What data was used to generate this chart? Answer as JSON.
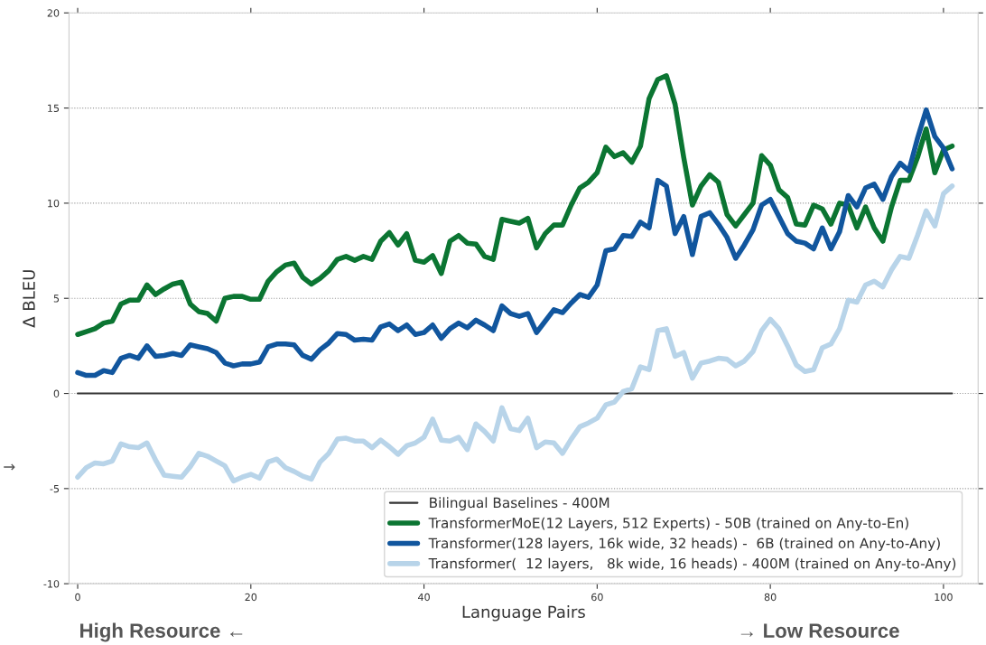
{
  "chart_data": {
    "type": "line",
    "xlabel": "Language Pairs",
    "ylabel": "Δ BLEU",
    "xlim": [
      -1,
      104
    ],
    "xticks": [
      0,
      20,
      40,
      60,
      80,
      100
    ],
    "ylim": [
      -10,
      20
    ],
    "yticks": [
      -10,
      -5,
      0,
      5,
      10,
      15,
      20
    ],
    "x": [
      0,
      1,
      2,
      3,
      4,
      5,
      6,
      7,
      8,
      9,
      10,
      11,
      12,
      13,
      14,
      15,
      16,
      17,
      18,
      19,
      20,
      21,
      22,
      23,
      24,
      25,
      26,
      27,
      28,
      29,
      30,
      31,
      32,
      33,
      34,
      35,
      36,
      37,
      38,
      39,
      40,
      41,
      42,
      43,
      44,
      45,
      46,
      47,
      48,
      49,
      50,
      51,
      52,
      53,
      54,
      55,
      56,
      57,
      58,
      59,
      60,
      61,
      62,
      63,
      64,
      65,
      66,
      67,
      68,
      69,
      70,
      71,
      72,
      73,
      74,
      75,
      76,
      77,
      78,
      79,
      80,
      81,
      82,
      83,
      84,
      85,
      86,
      87,
      88,
      89,
      90,
      91,
      92,
      93,
      94,
      95,
      96,
      97,
      98,
      99,
      100,
      101
    ],
    "grid": "y",
    "legend": "bottom right",
    "line_style": "solid",
    "annotations": [
      "High Resource ←",
      "→ Low Resource",
      "→"
    ],
    "series": [
      {
        "name": "Bilingual Baselines - 400M",
        "color": "#333333",
        "x": [
          0,
          101
        ],
        "values": [
          0,
          0
        ]
      },
      {
        "name": "TransformerMoE(12 Layers, 512 Experts) - 50B (trained on Any-to-En)",
        "color": "#0b7532",
        "values": [
          3.1,
          3.25,
          3.4,
          3.7,
          3.8,
          4.7,
          4.9,
          4.9,
          5.7,
          5.2,
          5.5,
          5.75,
          5.85,
          4.7,
          4.3,
          4.2,
          3.8,
          5.0,
          5.1,
          5.1,
          4.95,
          4.95,
          5.9,
          6.4,
          6.75,
          6.85,
          6.1,
          5.75,
          6.05,
          6.45,
          7.05,
          7.2,
          7.0,
          7.2,
          7.05,
          8.0,
          8.45,
          7.8,
          8.4,
          7.0,
          6.9,
          7.25,
          6.3,
          8.0,
          8.3,
          7.9,
          7.85,
          7.2,
          7.05,
          9.15,
          9.05,
          8.95,
          9.2,
          7.65,
          8.4,
          8.85,
          8.85,
          9.9,
          10.8,
          11.1,
          11.6,
          12.95,
          12.45,
          12.65,
          12.15,
          13.0,
          15.5,
          16.5,
          16.7,
          15.2,
          12.4,
          9.9,
          10.9,
          11.5,
          11.1,
          9.4,
          8.8,
          9.4,
          10.0,
          12.5,
          12.0,
          10.7,
          10.3,
          8.9,
          8.85,
          9.9,
          9.7,
          8.9,
          10.0,
          9.9,
          8.7,
          9.8,
          8.7,
          8.0,
          9.8,
          11.2,
          11.2,
          12.4,
          13.9,
          11.6,
          12.8,
          13.0
        ]
      },
      {
        "name": "Transformer(128 layers, 16k wide, 32 heads) -  6B (trained on Any-to-Any)",
        "color": "#11569e",
        "values": [
          1.1,
          0.95,
          0.95,
          1.2,
          1.1,
          1.85,
          2.0,
          1.85,
          2.5,
          1.95,
          2.0,
          2.1,
          2.0,
          2.55,
          2.45,
          2.35,
          2.15,
          1.6,
          1.45,
          1.55,
          1.55,
          1.65,
          2.45,
          2.6,
          2.6,
          2.55,
          2.0,
          1.8,
          2.3,
          2.65,
          3.15,
          3.1,
          2.8,
          2.85,
          2.8,
          3.5,
          3.65,
          3.3,
          3.6,
          3.1,
          3.2,
          3.6,
          2.9,
          3.4,
          3.7,
          3.45,
          3.85,
          3.6,
          3.3,
          4.6,
          4.2,
          4.05,
          4.2,
          3.2,
          3.8,
          4.4,
          4.25,
          4.75,
          5.2,
          5.05,
          5.7,
          7.5,
          7.6,
          8.3,
          8.25,
          9.0,
          8.7,
          11.2,
          10.9,
          8.4,
          9.3,
          7.3,
          9.3,
          9.5,
          8.9,
          8.2,
          7.1,
          7.8,
          8.6,
          9.9,
          10.2,
          9.3,
          8.4,
          8.0,
          7.9,
          7.6,
          8.7,
          7.6,
          8.5,
          10.4,
          9.8,
          10.8,
          11.0,
          10.2,
          11.4,
          12.1,
          11.7,
          13.4,
          14.9,
          13.5,
          12.9,
          11.8
        ]
      },
      {
        "name": "Transformer(  12 layers,   8k wide, 16 heads) - 400M (trained on Any-to-Any)",
        "color": "#b8d4e9",
        "values": [
          -4.4,
          -3.9,
          -3.65,
          -3.7,
          -3.55,
          -2.65,
          -2.8,
          -2.85,
          -2.6,
          -3.5,
          -4.3,
          -4.35,
          -4.4,
          -3.85,
          -3.15,
          -3.3,
          -3.55,
          -3.8,
          -4.6,
          -4.4,
          -4.25,
          -4.45,
          -3.6,
          -3.45,
          -3.9,
          -4.1,
          -4.35,
          -4.5,
          -3.6,
          -3.15,
          -2.4,
          -2.35,
          -2.5,
          -2.5,
          -2.85,
          -2.45,
          -2.8,
          -3.2,
          -2.75,
          -2.6,
          -2.3,
          -1.35,
          -2.45,
          -2.5,
          -2.3,
          -2.95,
          -1.6,
          -2.0,
          -2.5,
          -0.75,
          -1.85,
          -1.95,
          -1.3,
          -2.85,
          -2.55,
          -2.6,
          -3.15,
          -2.4,
          -1.75,
          -1.55,
          -1.3,
          -0.6,
          -0.45,
          0.1,
          0.25,
          1.4,
          1.25,
          3.3,
          3.4,
          1.95,
          2.15,
          0.8,
          1.6,
          1.7,
          1.85,
          1.8,
          1.45,
          1.7,
          2.2,
          3.3,
          3.9,
          3.4,
          2.5,
          1.5,
          1.15,
          1.25,
          2.4,
          2.6,
          3.4,
          4.9,
          4.8,
          5.7,
          5.9,
          5.6,
          6.5,
          7.2,
          7.1,
          8.3,
          9.6,
          8.8,
          10.5,
          10.9
        ]
      }
    ]
  }
}
